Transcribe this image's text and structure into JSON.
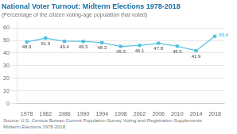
{
  "chart_data": {
    "type": "line",
    "title": "National Voter Turnout: Midterm Elections 1978-2018",
    "subtitle": "(Percentage of the citizen voting-age population that voted)",
    "annotations": [
      "Source: U.S. Census Bureau Current Population Survey Voting and Registration Supplements:\nMidterm Elections 1978-2018."
    ],
    "x": [
      1978,
      1982,
      1986,
      1990,
      1994,
      1998,
      2002,
      2006,
      2010,
      2014,
      2018
    ],
    "values": [
      48.9,
      51.9,
      49.4,
      49.3,
      48.3,
      45.3,
      46.1,
      47.8,
      45.5,
      41.9,
      53.4
    ],
    "color": "#4dbfdf",
    "marker": "square",
    "xlim": [
      1976,
      2020
    ],
    "xticks": [
      1978,
      1982,
      1986,
      1990,
      1994,
      1998,
      2002,
      2006,
      2010,
      2014,
      2018
    ],
    "ylim": [
      0,
      65
    ],
    "yticks": [
      0,
      10,
      20,
      30,
      40,
      50,
      60
    ],
    "grid": true,
    "data_labels": true
  }
}
